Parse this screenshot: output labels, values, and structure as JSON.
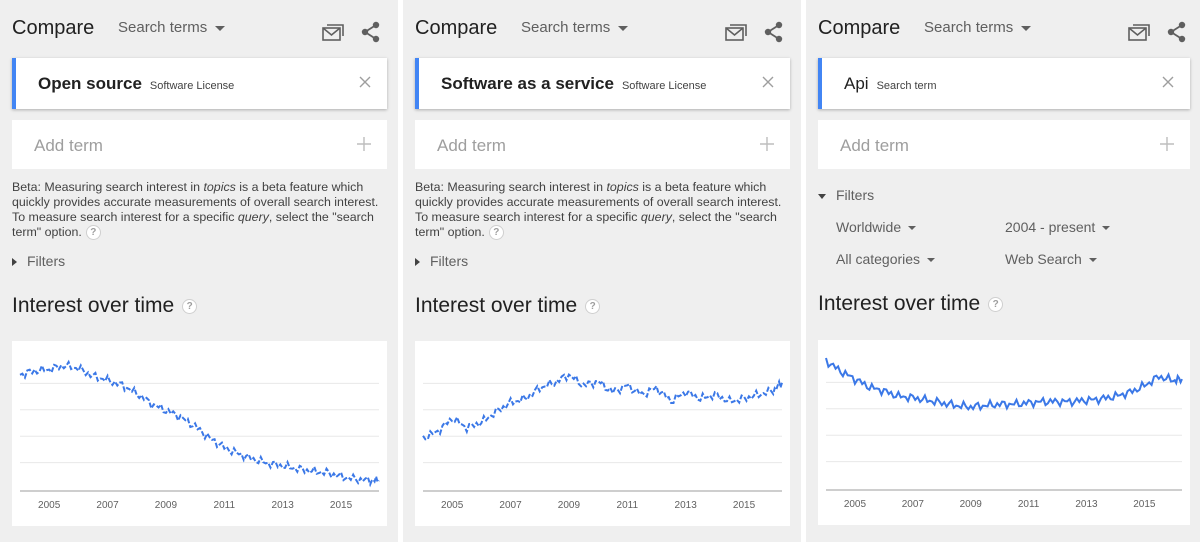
{
  "colors": {
    "accent": "#4285f4",
    "line": "#3b78e7",
    "panel_bg": "#efefef"
  },
  "icons": [
    "email-icon",
    "share-icon",
    "close-icon",
    "plus-icon",
    "help-icon"
  ],
  "panels": [
    {
      "header": {
        "title": "Compare",
        "dropdown": "Search terms"
      },
      "term": {
        "name": "Open source",
        "type": "Software License"
      },
      "add_term": "Add term",
      "beta": {
        "p1": "Beta: Measuring search interest in ",
        "em1": "topics",
        "p2": " is a beta feature which quickly provides accurate measurements of overall search interest. To measure search interest for a specific ",
        "em2": "query",
        "p3": ", select the \"search term\" option."
      },
      "filters_label": "Filters",
      "chart_title": "Interest over time"
    },
    {
      "header": {
        "title": "Compare",
        "dropdown": "Search terms"
      },
      "term": {
        "name": "Software as a service",
        "type": "Software License"
      },
      "add_term": "Add term",
      "beta": {
        "p1": "Beta: Measuring search interest in ",
        "em1": "topics",
        "p2": " is a beta feature which quickly provides accurate measurements of overall search interest. To measure search interest for a specific ",
        "em2": "query",
        "p3": ", select the \"search term\" option."
      },
      "filters_label": "Filters",
      "chart_title": "Interest over time"
    },
    {
      "header": {
        "title": "Compare",
        "dropdown": "Search terms"
      },
      "term": {
        "name": "Api",
        "type": "Search term"
      },
      "add_term": "Add term",
      "filters_label": "Filters",
      "filters": {
        "location": "Worldwide",
        "time": "2004 - present",
        "category": "All categories",
        "search_type": "Web Search"
      },
      "chart_title": "Interest over time"
    }
  ],
  "chart_data": [
    {
      "type": "line",
      "title": "Interest over time",
      "x": [
        2004,
        2004.5,
        2005,
        2005.5,
        2006,
        2006.5,
        2007,
        2007.5,
        2008,
        2008.5,
        2009,
        2009.5,
        2010,
        2010.5,
        2011,
        2011.5,
        2012,
        2012.5,
        2013,
        2013.5,
        2014,
        2014.5,
        2015,
        2015.5,
        2016,
        2016.3
      ],
      "series": [
        {
          "values": [
            88,
            91,
            92,
            95,
            93,
            87,
            84,
            80,
            74,
            66,
            61,
            56,
            49,
            40,
            33,
            28,
            24,
            21,
            19,
            17,
            15,
            14,
            11,
            9,
            8,
            8
          ]
        }
      ],
      "x_ticks": [
        "2005",
        "2007",
        "2009",
        "2011",
        "2013",
        "2015"
      ],
      "x_tick_values": [
        2005,
        2007,
        2009,
        2011,
        2013,
        2015
      ],
      "xlim": [
        2004,
        2016.3
      ],
      "ylim": [
        0,
        100
      ],
      "grid": true,
      "dashed": true
    },
    {
      "type": "line",
      "title": "Interest over time",
      "x": [
        2004,
        2004.5,
        2005,
        2005.5,
        2006,
        2006.5,
        2007,
        2007.5,
        2008,
        2008.5,
        2009,
        2009.5,
        2010,
        2010.5,
        2011,
        2011.5,
        2012,
        2012.5,
        2013,
        2013.5,
        2014,
        2014.5,
        2015,
        2015.5,
        2016,
        2016.3
      ],
      "series": [
        {
          "values": [
            40,
            45,
            55,
            48,
            52,
            60,
            67,
            70,
            78,
            82,
            88,
            80,
            83,
            75,
            80,
            73,
            78,
            68,
            75,
            70,
            73,
            68,
            70,
            73,
            76,
            82
          ]
        }
      ],
      "x_ticks": [
        "2005",
        "2007",
        "2009",
        "2011",
        "2013",
        "2015"
      ],
      "x_tick_values": [
        2005,
        2007,
        2009,
        2011,
        2013,
        2015
      ],
      "xlim": [
        2004,
        2016.3
      ],
      "ylim": [
        0,
        100
      ],
      "grid": true,
      "dashed": true
    },
    {
      "type": "line",
      "title": "Interest over time",
      "x": [
        2004,
        2004.5,
        2005,
        2005.5,
        2006,
        2006.5,
        2007,
        2007.5,
        2008,
        2008.5,
        2009,
        2009.5,
        2010,
        2010.5,
        2011,
        2011.5,
        2012,
        2012.5,
        2013,
        2013.5,
        2014,
        2014.5,
        2015,
        2015.5,
        2016,
        2016.3
      ],
      "series": [
        {
          "values": [
            98,
            90,
            84,
            78,
            75,
            71,
            70,
            68,
            66,
            64,
            63,
            64,
            65,
            65,
            66,
            67,
            67,
            67,
            68,
            69,
            71,
            74,
            79,
            86,
            83,
            84
          ]
        }
      ],
      "x_ticks": [
        "2005",
        "2007",
        "2009",
        "2011",
        "2013",
        "2015"
      ],
      "x_tick_values": [
        2005,
        2007,
        2009,
        2011,
        2013,
        2015
      ],
      "xlim": [
        2004,
        2016.3
      ],
      "ylim": [
        0,
        100
      ],
      "grid": true,
      "dashed": false
    }
  ]
}
